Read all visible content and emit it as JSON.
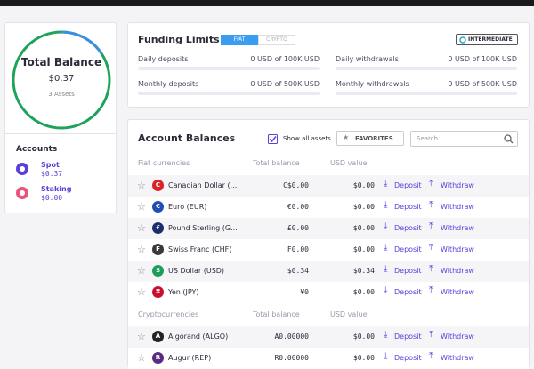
{
  "total_balance": {
    "title": "Total Balance",
    "amount": "$0.37",
    "assets": "3 Assets"
  },
  "accounts": {
    "title": "Accounts",
    "items": [
      {
        "name": "Spot",
        "amount": "$0.37",
        "color": "#5b3fd6"
      },
      {
        "name": "Staking",
        "amount": "$0.00",
        "color": "#e8577a"
      }
    ]
  },
  "funding_limits": {
    "title": "Funding Limits",
    "tabs": [
      "FIAT",
      "CRYPTO"
    ],
    "badge": "INTERMEDIATE",
    "limits": [
      {
        "label": "Daily deposits",
        "value": "0 USD of 100K USD"
      },
      {
        "label": "Daily withdrawals",
        "value": "0 USD of 100K USD"
      },
      {
        "label": "Monthly deposits",
        "value": "0 USD of 500K USD"
      },
      {
        "label": "Monthly withdrawals",
        "value": "0 USD of 500K USD"
      }
    ]
  },
  "account_balances": {
    "title": "Account Balances",
    "show_all": "Show all assets",
    "favorites": "FAVORITES",
    "search_placeholder": "Search",
    "columns": [
      "Total balance",
      "USD value"
    ],
    "actions": [
      "Deposit",
      "Withdraw"
    ],
    "sections": [
      {
        "title": "Fiat currencies",
        "rows": [
          {
            "symbol": "C",
            "color": "#d8232a",
            "name": "Canadian Dollar (...",
            "balance": "C$0.00",
            "usd": "$0.00"
          },
          {
            "symbol": "€",
            "color": "#1f4fb4",
            "name": "Euro (EUR)",
            "balance": "€0.00",
            "usd": "$0.00"
          },
          {
            "symbol": "£",
            "color": "#1c2e6b",
            "name": "Pound Sterling (G...",
            "balance": "£0.00",
            "usd": "$0.00"
          },
          {
            "symbol": "F",
            "color": "#3a3a3a",
            "name": "Swiss Franc (CHF)",
            "balance": "F0.00",
            "usd": "$0.00"
          },
          {
            "symbol": "$",
            "color": "#1e9c5a",
            "name": "US Dollar (USD)",
            "balance": "$0.34",
            "usd": "$0.34"
          },
          {
            "symbol": "¥",
            "color": "#c8102e",
            "name": "Yen (JPY)",
            "balance": "¥0",
            "usd": "$0.00"
          }
        ]
      },
      {
        "title": "Cryptocurrencies",
        "rows": [
          {
            "symbol": "A",
            "color": "#222222",
            "name": "Algorand (ALGO)",
            "balance": "A0.00000",
            "usd": "$0.00"
          },
          {
            "symbol": "R",
            "color": "#5a2a82",
            "name": "Augur (REP)",
            "balance": "R0.00000",
            "usd": "$0.00"
          }
        ]
      }
    ]
  }
}
